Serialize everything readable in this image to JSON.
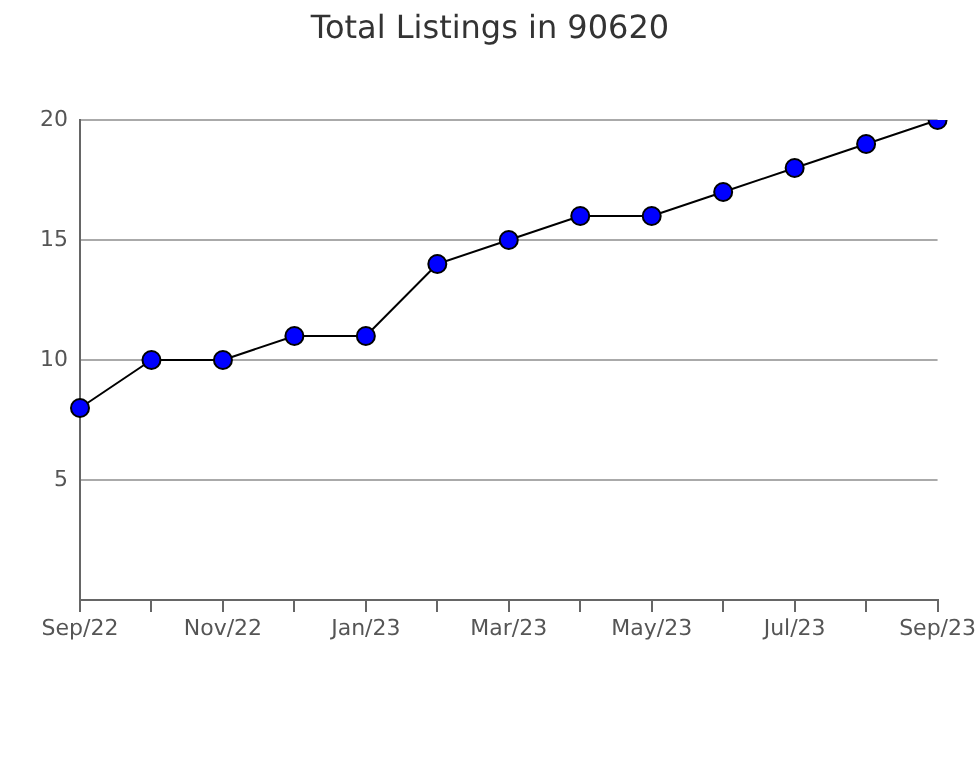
{
  "chart_data": {
    "type": "line",
    "title": "Total Listings in 90620",
    "categories": [
      "Sep/22",
      null,
      "Nov/22",
      null,
      "Jan/23",
      null,
      "Mar/23",
      null,
      "May/23",
      null,
      "Jul/23",
      null,
      "Sep/23"
    ],
    "series": [
      {
        "color": "#0000ff",
        "values": [
          8,
          10,
          10,
          11,
          11,
          14,
          15,
          16,
          16,
          17,
          18,
          19,
          20
        ]
      }
    ],
    "ylim": [
      0,
      20
    ],
    "yticks": [
      {
        "value": 0,
        "label": null
      },
      5,
      10,
      15,
      20
    ],
    "grid": "y",
    "legend": false,
    "marker": "circle",
    "line_style": "solid"
  }
}
